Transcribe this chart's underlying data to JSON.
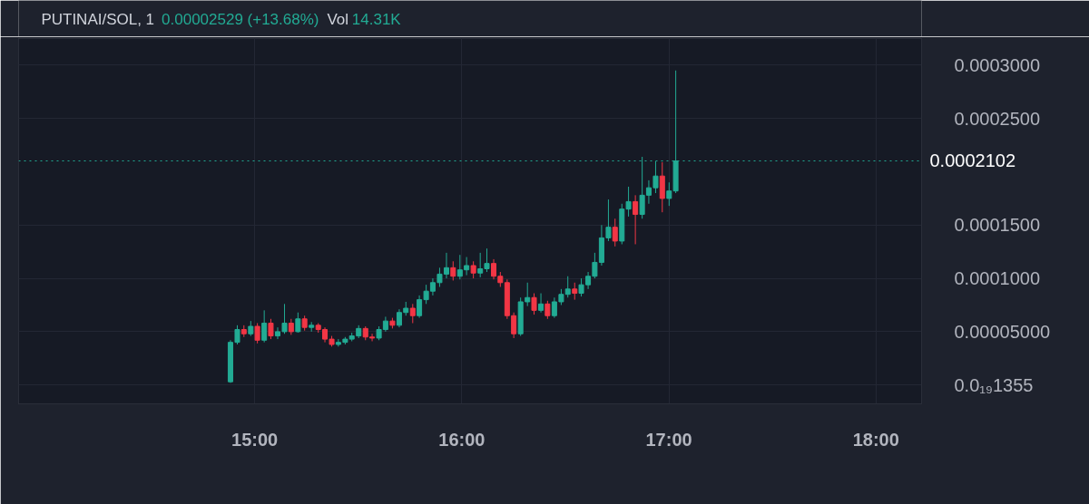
{
  "chart_data": {
    "type": "candlestick",
    "title": "PUTINAI/SOL, 1",
    "annotations": [
      "0.00002529 (+13.68%)",
      "Vol",
      "14.31K"
    ],
    "x": [
      14.883,
      14.916,
      14.948,
      14.981,
      15.013,
      15.046,
      15.078,
      15.111,
      15.144,
      15.176,
      15.209,
      15.241,
      15.274,
      15.307,
      15.339,
      15.372,
      15.404,
      15.437,
      15.469,
      15.502,
      15.535,
      15.567,
      15.6,
      15.632,
      15.665,
      15.698,
      15.73,
      15.763,
      15.795,
      15.828,
      15.86,
      15.893,
      15.926,
      15.958,
      15.991,
      16.023,
      16.056,
      16.089,
      16.121,
      16.154,
      16.186,
      16.219,
      16.251,
      16.284,
      16.317,
      16.349,
      16.382,
      16.414,
      16.447,
      16.48,
      16.512,
      16.545,
      16.577,
      16.61,
      16.642,
      16.675,
      16.708,
      16.74,
      16.773,
      16.805,
      16.838,
      16.871,
      16.903,
      16.936,
      16.968,
      17.001,
      17.033
    ],
    "ohlc": [
      [
        3e-06,
        4.2e-05,
        2e-06,
        4e-05
      ],
      [
        4e-05,
        5.6e-05,
        3.8e-05,
        5.2e-05
      ],
      [
        5.2e-05,
        5.6e-05,
        4.5e-05,
        4.8e-05
      ],
      [
        4.8e-05,
        6e-05,
        4.6e-05,
        5.5e-05
      ],
      [
        5.5e-05,
        5.8e-05,
        3.9e-05,
        4.2e-05
      ],
      [
        4.2e-05,
        7e-05,
        4e-05,
        5.8e-05
      ],
      [
        5.8e-05,
        6.2e-05,
        4.3e-05,
        4.6e-05
      ],
      [
        4.6e-05,
        5.4e-05,
        4.3e-05,
        5e-05
      ],
      [
        5e-05,
        7.6e-05,
        4.8e-05,
        5.8e-05
      ],
      [
        5.8e-05,
        6.2e-05,
        4.7e-05,
        5e-05
      ],
      [
        5e-05,
        6.8e-05,
        4.9e-05,
        6.2e-05
      ],
      [
        6.2e-05,
        6.5e-05,
        5.1e-05,
        5.4e-05
      ],
      [
        5.4e-05,
        5.9e-05,
        5e-05,
        5.6e-05
      ],
      [
        5.6e-05,
        5.8e-05,
        4.9e-05,
        5.2e-05
      ],
      [
        5.2e-05,
        5.4e-05,
        4e-05,
        4.3e-05
      ],
      [
        4.3e-05,
        4.6e-05,
        3.6e-05,
        3.8e-05
      ],
      [
        3.8e-05,
        4.3e-05,
        3.6e-05,
        4e-05
      ],
      [
        4e-05,
        4.5e-05,
        3.8e-05,
        4.3e-05
      ],
      [
        4.3e-05,
        4.9e-05,
        4.1e-05,
        4.6e-05
      ],
      [
        4.6e-05,
        5.6e-05,
        4.4e-05,
        5.3e-05
      ],
      [
        5.3e-05,
        5.5e-05,
        4.2e-05,
        4.5e-05
      ],
      [
        4.5e-05,
        4.8e-05,
        4.1e-05,
        4.4e-05
      ],
      [
        4.4e-05,
        5.5e-05,
        4.2e-05,
        5.2e-05
      ],
      [
        5.2e-05,
        6.4e-05,
        5e-05,
        6e-05
      ],
      [
        6e-05,
        6.3e-05,
        5.3e-05,
        5.6e-05
      ],
      [
        5.6e-05,
        7.1e-05,
        5.4e-05,
        6.8e-05
      ],
      [
        6.8e-05,
        7.8e-05,
        6.5e-05,
        7.2e-05
      ],
      [
        7.2e-05,
        7.6e-05,
        5.8e-05,
        6.5e-05
      ],
      [
        6.5e-05,
        8.4e-05,
        6.3e-05,
        8e-05
      ],
      [
        8e-05,
        9.4e-05,
        7.6e-05,
        8.8e-05
      ],
      [
        8.8e-05,
        0.0001,
        8.4e-05,
        9.6e-05
      ],
      [
        9.6e-05,
        0.00011,
        9.2e-05,
        0.000104
      ],
      [
        0.000104,
        0.000124,
        0.0001,
        0.00011
      ],
      [
        0.00011,
        0.000116,
        9.8e-05,
        0.000102
      ],
      [
        0.000102,
        0.000122,
        9.9e-05,
        0.000108
      ],
      [
        0.000108,
        0.00012,
        0.000103,
        0.000112
      ],
      [
        0.000112,
        0.000116,
        0.0001,
        0.000105
      ],
      [
        0.000105,
        0.000124,
        0.000101,
        0.000109
      ],
      [
        0.000109,
        0.000128,
        0.000106,
        0.000114
      ],
      [
        0.000114,
        0.000118,
        9.9e-05,
        0.000102
      ],
      [
        0.000102,
        0.000106,
        9.2e-05,
        9.6e-05
      ],
      [
        9.6e-05,
        9.9e-05,
        6.2e-05,
        6.5e-05
      ],
      [
        6.5e-05,
        6.8e-05,
        4.4e-05,
        4.8e-05
      ],
      [
        4.8e-05,
        8.2e-05,
        4.6e-05,
        7.8e-05
      ],
      [
        7.8e-05,
        9.6e-05,
        7.4e-05,
        8.2e-05
      ],
      [
        8.2e-05,
        8.6e-05,
        6.6e-05,
        7e-05
      ],
      [
        7e-05,
        8.6e-05,
        6.8e-05,
        7.6e-05
      ],
      [
        7.6e-05,
        7.9e-05,
        6.2e-05,
        6.5e-05
      ],
      [
        6.5e-05,
        8.2e-05,
        6.3e-05,
        7.8e-05
      ],
      [
        7.8e-05,
        9e-05,
        7.5e-05,
        8.5e-05
      ],
      [
        8.5e-05,
        0.000102,
        8.2e-05,
        9e-05
      ],
      [
        9e-05,
        9.6e-05,
        8e-05,
        8.6e-05
      ],
      [
        8.6e-05,
        0.0001,
        8.3e-05,
        9.4e-05
      ],
      [
        9.4e-05,
        0.000106,
        9e-05,
        0.000102
      ],
      [
        0.000102,
        0.000124,
        0.0001,
        0.000115
      ],
      [
        0.000115,
        0.00015,
        0.000112,
        0.000138
      ],
      [
        0.000138,
        0.000174,
        0.000135,
        0.000148
      ],
      [
        0.000148,
        0.000156,
        0.00013,
        0.000135
      ],
      [
        0.000135,
        0.00017,
        0.000132,
        0.000165
      ],
      [
        0.000165,
        0.000186,
        0.000158,
        0.000172
      ],
      [
        0.000172,
        0.000178,
        0.000132,
        0.00016
      ],
      [
        0.00016,
        0.000214,
        0.000156,
        0.000178
      ],
      [
        0.000178,
        0.000192,
        0.00017,
        0.000185
      ],
      [
        0.000185,
        0.00021,
        0.00018,
        0.000196
      ],
      [
        0.000196,
        0.000209,
        0.000162,
        0.000175
      ],
      [
        0.000175,
        0.00019,
        0.000168,
        0.000182
      ],
      [
        0.000182,
        0.000295,
        0.00018,
        0.0002102
      ]
    ],
    "colors": [
      "#22ab94",
      "#22ab94",
      "#f23645",
      "#22ab94",
      "#f23645",
      "#22ab94",
      "#f23645",
      "#22ab94",
      "#22ab94",
      "#f23645",
      "#22ab94",
      "#f23645",
      "#22ab94",
      "#f23645",
      "#f23645",
      "#f23645",
      "#22ab94",
      "#22ab94",
      "#22ab94",
      "#22ab94",
      "#f23645",
      "#f23645",
      "#22ab94",
      "#22ab94",
      "#f23645",
      "#22ab94",
      "#22ab94",
      "#f23645",
      "#22ab94",
      "#22ab94",
      "#22ab94",
      "#22ab94",
      "#22ab94",
      "#f23645",
      "#22ab94",
      "#22ab94",
      "#f23645",
      "#22ab94",
      "#22ab94",
      "#f23645",
      "#f23645",
      "#f23645",
      "#f23645",
      "#22ab94",
      "#22ab94",
      "#f23645",
      "#22ab94",
      "#f23645",
      "#22ab94",
      "#22ab94",
      "#22ab94",
      "#f23645",
      "#22ab94",
      "#22ab94",
      "#22ab94",
      "#22ab94",
      "#22ab94",
      "#f23645",
      "#22ab94",
      "#22ab94",
      "#f23645",
      "#22ab94",
      "#22ab94",
      "#22ab94",
      "#f23645",
      "#22ab94",
      "#22ab94"
    ],
    "xlim": [
      13.86,
      18.22
    ],
    "xticks": [
      {
        "value": 15,
        "label": "15:00"
      },
      {
        "value": 16,
        "label": "16:00"
      },
      {
        "value": 17,
        "label": "17:00"
      },
      {
        "value": 18,
        "label": "18:00"
      }
    ],
    "ylim": [
      -1.77e-05,
      0.000325
    ],
    "yticks": [
      {
        "value": 0,
        "label": "0.0₁₉1355"
      },
      {
        "value": 5e-05,
        "label": "0.00005000"
      },
      {
        "value": 0.0001,
        "label": "0.0001000"
      },
      {
        "value": 0.00015,
        "label": "0.0001500"
      },
      {
        "value": 0.00025,
        "label": "0.0002500"
      },
      {
        "value": 0.0003,
        "label": "0.0003000"
      }
    ],
    "ref_lines": [
      {
        "axis": "y",
        "value": 0.0002102,
        "label": "0.0002102",
        "color": "#22ab94",
        "line_style": "dotted"
      }
    ],
    "grid": true
  }
}
